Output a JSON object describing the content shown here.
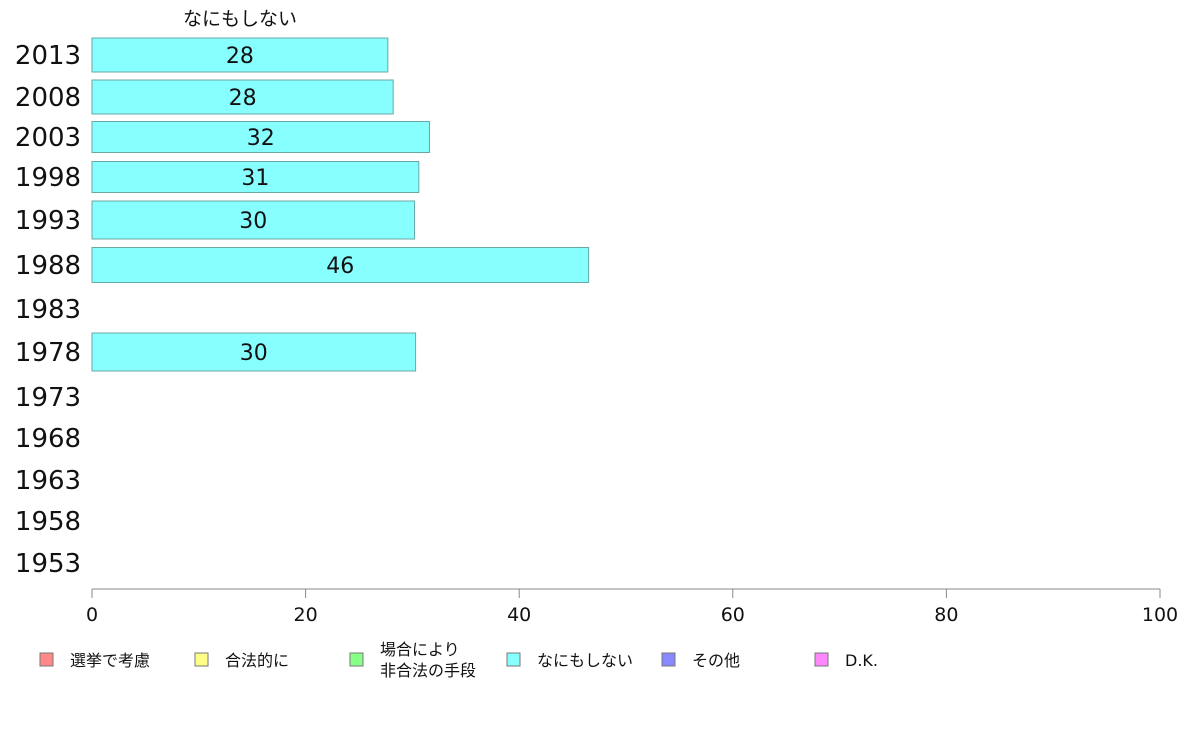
{
  "chart_data": {
    "type": "bar",
    "orientation": "horizontal",
    "title": "",
    "series_title": "なにもしない",
    "categories": [
      "2013",
      "2008",
      "2003",
      "1998",
      "1993",
      "1988",
      "1983",
      "1978",
      "1973",
      "1968",
      "1963",
      "1958",
      "1953"
    ],
    "series": [
      {
        "name": "なにもしない",
        "color": "#88ffff",
        "values": [
          27.7,
          28.2,
          31.6,
          30.6,
          30.2,
          46.5,
          null,
          30.3,
          null,
          null,
          null,
          null,
          null
        ],
        "labels": [
          "28",
          "28",
          "32",
          "31",
          "30",
          "46",
          "",
          "30",
          "",
          "",
          "",
          "",
          ""
        ]
      }
    ],
    "xlim": [
      0,
      100
    ],
    "xticks": [
      "0",
      "20",
      "40",
      "60",
      "80",
      "100"
    ],
    "grid": false,
    "legend_position": "bottom",
    "legend": [
      {
        "lines": [
          "選挙で考慮"
        ],
        "color": "#ff8888"
      },
      {
        "lines": [
          "合法的に"
        ],
        "color": "#ffff88"
      },
      {
        "lines": [
          "場合により",
          "非合法の手段"
        ],
        "color": "#88ff88"
      },
      {
        "lines": [
          "なにもしない"
        ],
        "color": "#88ffff"
      },
      {
        "lines": [
          "その他"
        ],
        "color": "#8888ff"
      },
      {
        "lines": [
          "D.K."
        ],
        "color": "#ff88ff"
      }
    ]
  }
}
